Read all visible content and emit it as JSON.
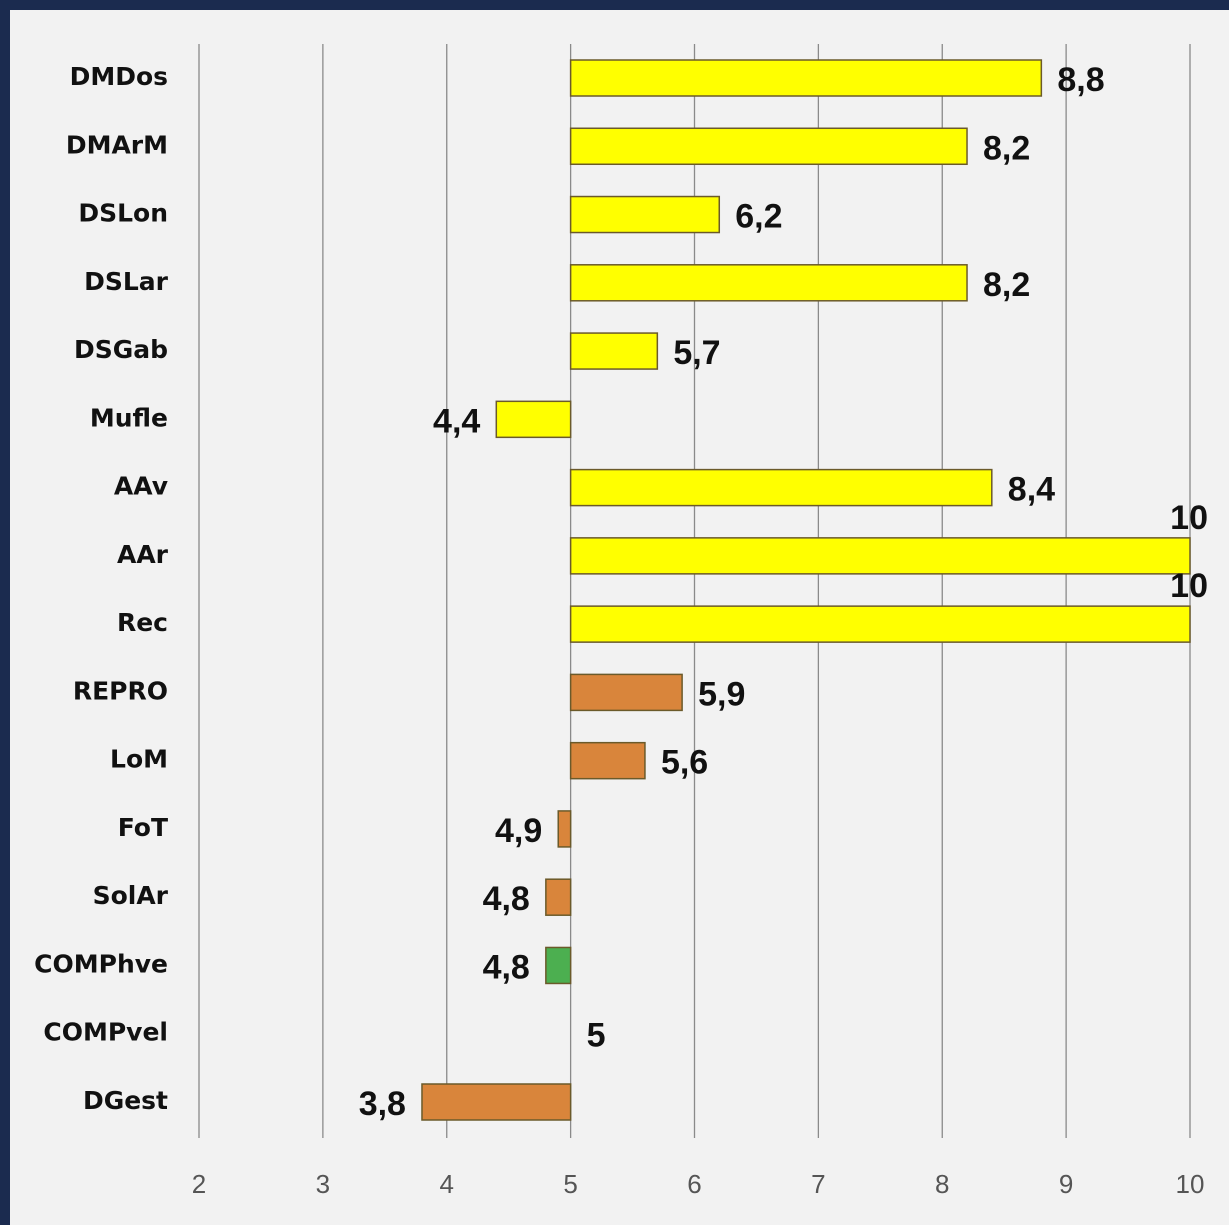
{
  "chart_data": {
    "type": "bar",
    "orientation": "horizontal",
    "categories": [
      "DMDos",
      "DMArM",
      "DSLon",
      "DSLar",
      "DSGab",
      "Mufle",
      "AAv",
      "AAr",
      "Rec",
      "REPRO",
      "LoM",
      "FoT",
      "SolAr",
      "COMPhve",
      "COMPvel",
      "DGest"
    ],
    "values": [
      8.8,
      8.2,
      6.2,
      8.2,
      5.7,
      4.4,
      8.4,
      10,
      10,
      5.9,
      5.6,
      4.9,
      4.8,
      4.8,
      5,
      3.8
    ],
    "value_labels": [
      "8,8",
      "8,2",
      "6,2",
      "8,2",
      "5,7",
      "4,4",
      "8,4",
      "10",
      "10",
      "5,9",
      "5,6",
      "4,9",
      "4,8",
      "4,8",
      "5",
      "3,8"
    ],
    "colors": [
      "#ffff00",
      "#ffff00",
      "#ffff00",
      "#ffff00",
      "#ffff00",
      "#ffff00",
      "#ffff00",
      "#ffff00",
      "#ffff00",
      "#d9853b",
      "#d9853b",
      "#d9853b",
      "#d9853b",
      "#4caf50",
      "#d9853b",
      "#d9853b"
    ],
    "baseline": 5,
    "xlim": [
      2,
      10
    ],
    "xticks": [
      2,
      3,
      4,
      5,
      6,
      7,
      8,
      9,
      10
    ],
    "grid": true
  }
}
